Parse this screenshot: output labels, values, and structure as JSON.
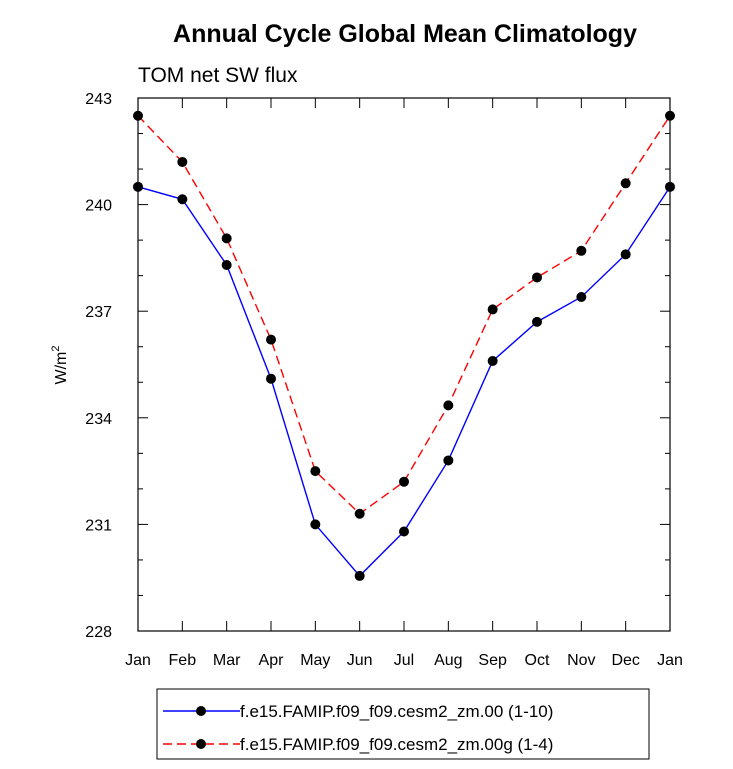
{
  "chart_data": {
    "type": "line",
    "title": "Annual Cycle Global Mean Climatology",
    "subtitle": "TOM net SW flux",
    "ylabel_base": "W/m",
    "ylabel_sup": "2",
    "xlabel": "",
    "categories": [
      "Jan",
      "Feb",
      "Mar",
      "Apr",
      "May",
      "Jun",
      "Jul",
      "Aug",
      "Sep",
      "Oct",
      "Nov",
      "Dec",
      "Jan"
    ],
    "ylim": [
      228,
      243
    ],
    "yticks": [
      228,
      231,
      234,
      237,
      240,
      243
    ],
    "grid": false,
    "legend_position": "bottom",
    "series": [
      {
        "name": "f.e15.FAMIP.f09_f09.cesm2_zm.00 (1-10)",
        "color": "#0000ff",
        "dash": "solid",
        "values": [
          240.5,
          240.15,
          238.3,
          235.1,
          231.0,
          229.55,
          230.8,
          232.8,
          235.6,
          236.7,
          237.4,
          238.6,
          240.5
        ]
      },
      {
        "name": "f.e15.FAMIP.f09_f09.cesm2_zm.00g (1-4)",
        "color": "#ff0000",
        "dash": "dashed",
        "values": [
          242.5,
          241.2,
          239.05,
          236.2,
          232.5,
          231.3,
          232.2,
          234.35,
          237.05,
          237.95,
          238.7,
          240.6,
          242.5
        ]
      }
    ]
  }
}
